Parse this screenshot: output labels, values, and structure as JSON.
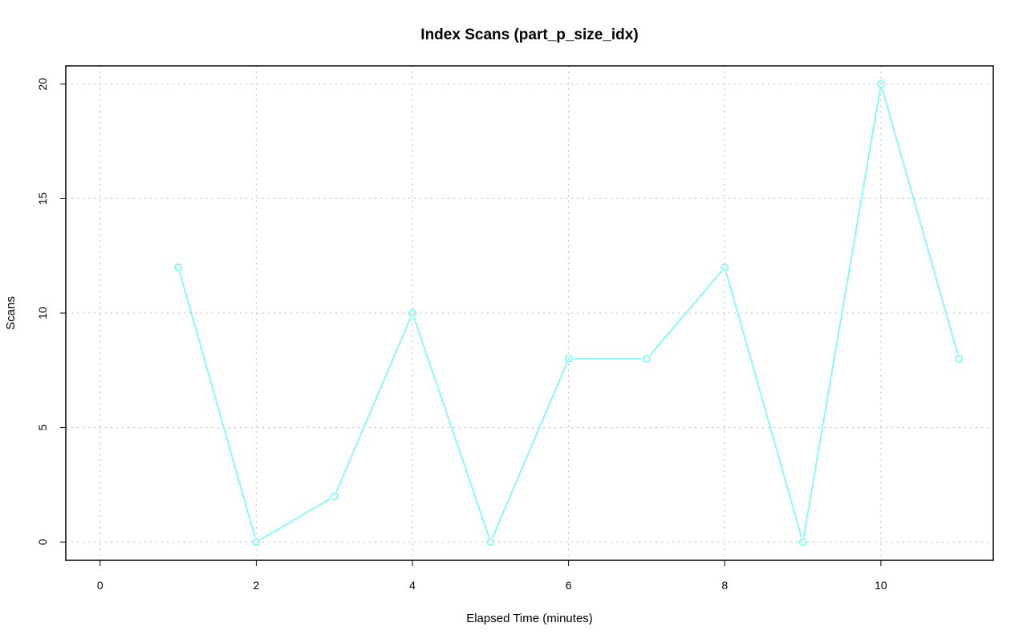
{
  "chart_data": {
    "type": "line",
    "title": "Index Scans (part_p_size_idx)",
    "xlabel": "Elapsed Time (minutes)",
    "ylabel": "Scans",
    "xlim": [
      -0.44,
      11.44
    ],
    "ylim": [
      -0.8,
      20.8
    ],
    "xticks": [
      0,
      2,
      4,
      6,
      8,
      10
    ],
    "yticks": [
      0,
      5,
      10,
      15,
      20
    ],
    "grid": true,
    "series": [
      {
        "color": "#66ffff",
        "marker": "open-circle",
        "x": [
          1,
          2,
          3,
          4,
          5,
          6,
          7,
          8,
          9,
          10,
          11
        ],
        "y": [
          12,
          0,
          2,
          10,
          0,
          8,
          8,
          12,
          0,
          20,
          8
        ]
      }
    ]
  }
}
